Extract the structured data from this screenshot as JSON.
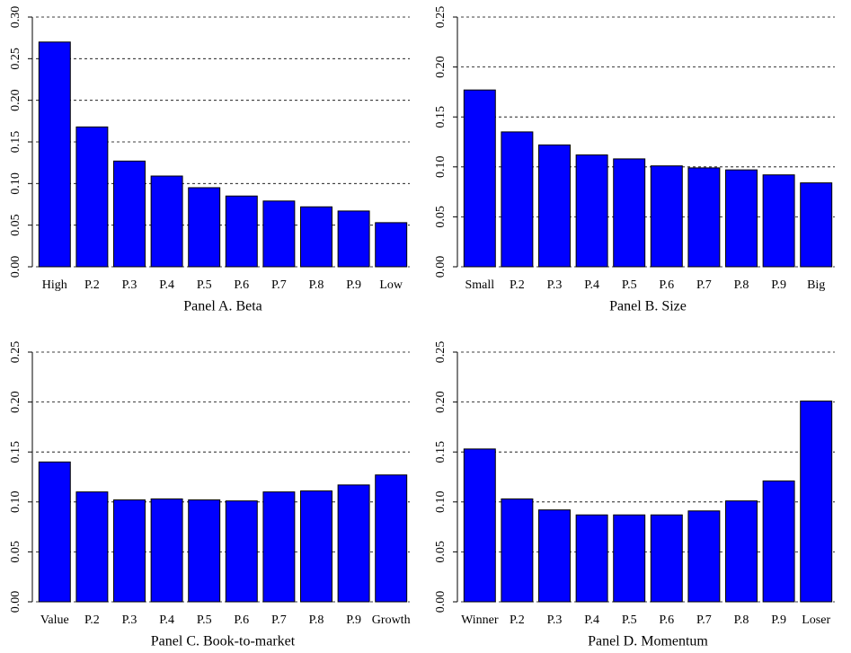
{
  "chart_data": [
    {
      "type": "bar",
      "title": "Panel A. Beta",
      "color": "#0000ff",
      "grid": true,
      "categories": [
        "High",
        "P.2",
        "P.3",
        "P.4",
        "P.5",
        "P.6",
        "P.7",
        "P.8",
        "P.9",
        "Low"
      ],
      "values": [
        0.27,
        0.168,
        0.127,
        0.109,
        0.095,
        0.085,
        0.079,
        0.072,
        0.067,
        0.053
      ],
      "ylim": [
        0,
        0.3
      ],
      "yticks": [
        {
          "value": 0,
          "label": "0.00"
        },
        {
          "value": 0.05,
          "label": "0.05"
        },
        {
          "value": 0.1,
          "label": "0.10"
        },
        {
          "value": 0.15,
          "label": "0.15"
        },
        {
          "value": 0.2,
          "label": "0.20"
        },
        {
          "value": 0.25,
          "label": "0.25"
        },
        {
          "value": 0.3,
          "label": "0.30"
        }
      ]
    },
    {
      "type": "bar",
      "title": "Panel B. Size",
      "color": "#0000ff",
      "grid": true,
      "categories": [
        "Small",
        "P.2",
        "P.3",
        "P.4",
        "P.5",
        "P.6",
        "P.7",
        "P.8",
        "P.9",
        "Big"
      ],
      "values": [
        0.177,
        0.135,
        0.122,
        0.112,
        0.108,
        0.101,
        0.099,
        0.097,
        0.092,
        0.084
      ],
      "ylim": [
        0,
        0.25
      ],
      "yticks": [
        {
          "value": 0,
          "label": "0.00"
        },
        {
          "value": 0.05,
          "label": "0.05"
        },
        {
          "value": 0.1,
          "label": "0.10"
        },
        {
          "value": 0.15,
          "label": "0.15"
        },
        {
          "value": 0.2,
          "label": "0.20"
        },
        {
          "value": 0.25,
          "label": "0.25"
        }
      ]
    },
    {
      "type": "bar",
      "title": "Panel C. Book-to-market",
      "color": "#0000ff",
      "grid": true,
      "categories": [
        "Value",
        "P.2",
        "P.3",
        "P.4",
        "P.5",
        "P.6",
        "P.7",
        "P.8",
        "P.9",
        "Growth"
      ],
      "values": [
        0.14,
        0.11,
        0.102,
        0.103,
        0.102,
        0.101,
        0.11,
        0.111,
        0.117,
        0.127
      ],
      "ylim": [
        0,
        0.25
      ],
      "yticks": [
        {
          "value": 0,
          "label": "0.00"
        },
        {
          "value": 0.05,
          "label": "0.05"
        },
        {
          "value": 0.1,
          "label": "0.10"
        },
        {
          "value": 0.15,
          "label": "0.15"
        },
        {
          "value": 0.2,
          "label": "0.20"
        },
        {
          "value": 0.25,
          "label": "0.25"
        }
      ]
    },
    {
      "type": "bar",
      "title": "Panel D. Momentum",
      "color": "#0000ff",
      "grid": true,
      "categories": [
        "Winner",
        "P.2",
        "P.3",
        "P.4",
        "P.5",
        "P.6",
        "P.7",
        "P.8",
        "P.9",
        "Loser"
      ],
      "values": [
        0.153,
        0.103,
        0.092,
        0.087,
        0.087,
        0.087,
        0.091,
        0.101,
        0.121,
        0.201
      ],
      "ylim": [
        0,
        0.25
      ],
      "yticks": [
        {
          "value": 0,
          "label": "0.00"
        },
        {
          "value": 0.05,
          "label": "0.05"
        },
        {
          "value": 0.1,
          "label": "0.10"
        },
        {
          "value": 0.15,
          "label": "0.15"
        },
        {
          "value": 0.2,
          "label": "0.20"
        },
        {
          "value": 0.25,
          "label": "0.25"
        }
      ]
    }
  ]
}
